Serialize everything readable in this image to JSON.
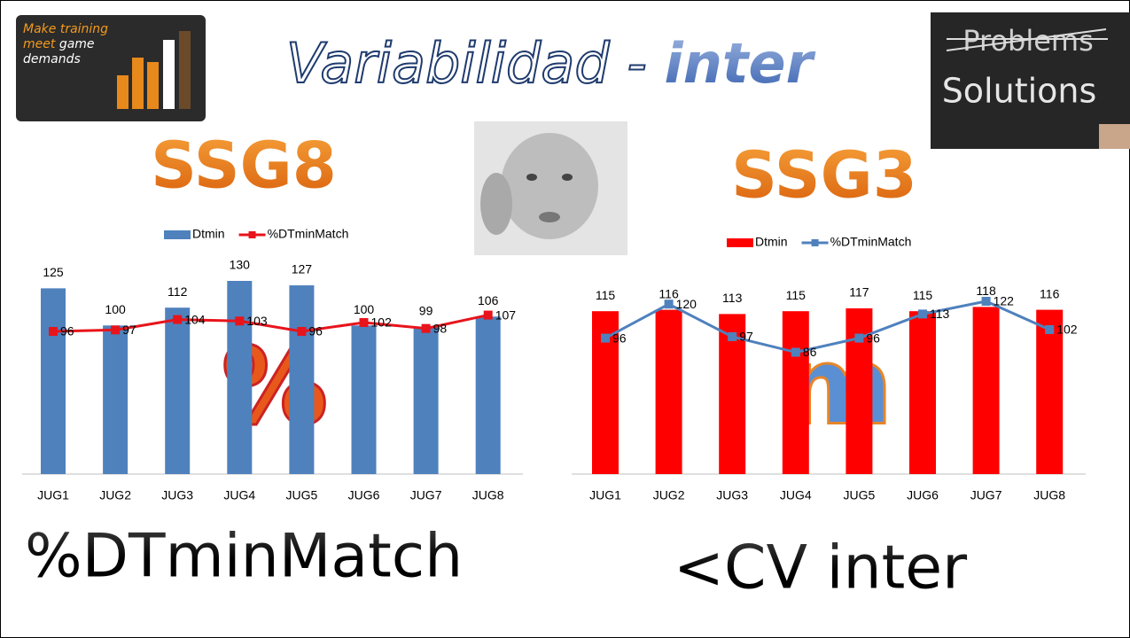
{
  "slide": {
    "title": "Variabilidad -",
    "title_accent": "inter",
    "logo_line1": "Make training",
    "logo_line2a": "meet",
    "logo_line2b": "game",
    "logo_line3": "demands",
    "board_crossed": "Problems",
    "board_text": "Solutions",
    "symbol_left": "%",
    "symbol_right": "m",
    "caption_left": "%DTminMatch",
    "caption_right": "<CV inter"
  },
  "chart_data": [
    {
      "type": "bar",
      "title": "SSG8",
      "categories": [
        "JUG1",
        "JUG2",
        "JUG3",
        "JUG4",
        "JUG5",
        "JUG6",
        "JUG7",
        "JUG8"
      ],
      "series": [
        {
          "name": "Dtmin",
          "type": "bar",
          "color": "#4f81bd",
          "values": [
            125,
            100,
            112,
            130,
            127,
            100,
            99,
            106
          ]
        },
        {
          "name": "%DTminMatch",
          "type": "line",
          "color": "#e8141b",
          "values": [
            96,
            97,
            104,
            103,
            96,
            102,
            98,
            107
          ]
        }
      ]
    },
    {
      "type": "bar",
      "title": "SSG3",
      "categories": [
        "JUG1",
        "JUG2",
        "JUG3",
        "JUG4",
        "JUG5",
        "JUG6",
        "JUG7",
        "JUG8"
      ],
      "series": [
        {
          "name": "Dtmin",
          "type": "bar",
          "color": "#ff0000",
          "values": [
            115,
            116,
            113,
            115,
            117,
            115,
            118,
            116
          ]
        },
        {
          "name": "%DTminMatch",
          "type": "line",
          "color": "#4f81bd",
          "values": [
            96,
            120,
            97,
            86,
            96,
            113,
            122,
            102
          ]
        }
      ]
    }
  ]
}
